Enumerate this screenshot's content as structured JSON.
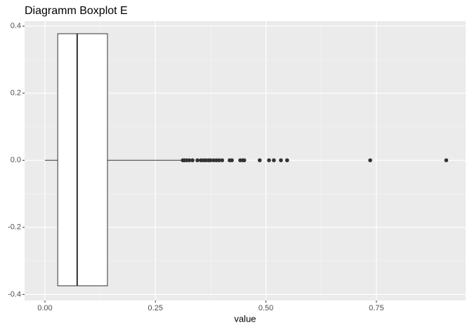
{
  "chart_data": {
    "type": "boxplot",
    "title": "Diagramm Boxplot E",
    "x_label": "value",
    "xlim": [
      -0.046,
      0.952
    ],
    "ylim": [
      -0.418,
      0.415
    ],
    "xticks": [
      {
        "value": 0,
        "label": "0.00"
      },
      {
        "value": 0.25,
        "label": "0.25"
      },
      {
        "value": 0.5,
        "label": "0.50"
      },
      {
        "value": 0.75,
        "label": "0.75"
      }
    ],
    "yticks": [
      0.4,
      0.2,
      {
        "value": 0,
        "label": "0.0"
      },
      -0.2,
      -0.4
    ],
    "grid": true,
    "fill": "#ffffff",
    "color": "#333333",
    "box": {
      "min": 0.0,
      "q1": 0.029,
      "median": 0.073,
      "q3": 0.1415,
      "max": 0.312,
      "outliers": [
        0.312,
        0.316,
        0.321,
        0.327,
        0.334,
        0.345,
        0.353,
        0.359,
        0.364,
        0.37,
        0.375,
        0.382,
        0.388,
        0.394,
        0.401,
        0.418,
        0.423,
        0.442,
        0.448,
        0.451,
        0.486,
        0.507,
        0.518,
        0.534,
        0.548,
        0.736,
        0.908
      ]
    }
  }
}
